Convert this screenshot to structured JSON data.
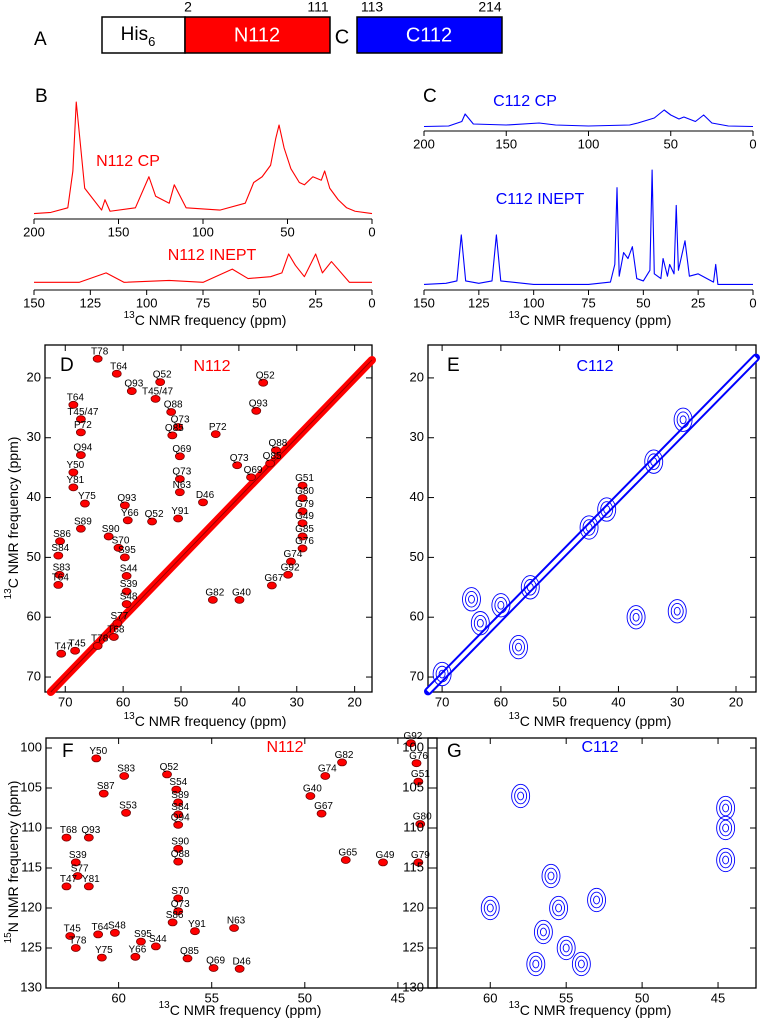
{
  "construct": {
    "letter": "A",
    "tag": "His",
    "tag_sub": "6",
    "linker": "C",
    "domains": [
      {
        "name": "N112",
        "start": 2,
        "end": 111,
        "color": "#ff0000"
      },
      {
        "name": "C112",
        "start": 113,
        "end": 214,
        "color": "#0000ff"
      }
    ]
  },
  "chart_data": [
    {
      "type": "line",
      "letter": "B",
      "title": "N112 CP",
      "color": "#ff0000",
      "x": [
        200,
        190,
        180,
        177,
        175,
        173,
        170,
        160,
        158,
        155,
        140,
        132,
        128,
        120,
        117,
        110,
        90,
        75,
        70,
        65,
        60,
        57,
        55,
        52,
        48,
        43,
        40,
        35,
        30,
        28,
        25,
        20,
        15,
        10,
        0
      ],
      "values": [
        3,
        4,
        8,
        40,
        100,
        70,
        25,
        6,
        15,
        5,
        8,
        35,
        18,
        12,
        28,
        8,
        6,
        12,
        30,
        35,
        45,
        68,
        80,
        60,
        42,
        30,
        28,
        35,
        32,
        40,
        25,
        15,
        8,
        5,
        3
      ],
      "xlim": [
        200,
        0
      ],
      "xticks": [
        200,
        150,
        100,
        50,
        0
      ]
    },
    {
      "type": "line",
      "title": "N112 INEPT",
      "color": "#ff0000",
      "x": [
        150,
        130,
        118,
        110,
        90,
        75,
        62,
        55,
        45,
        40,
        37,
        34,
        30,
        25,
        22,
        18,
        10,
        0
      ],
      "values": [
        3,
        3,
        8,
        3,
        4,
        3,
        10,
        5,
        6,
        8,
        18,
        12,
        6,
        18,
        8,
        14,
        3,
        3
      ],
      "xlim": [
        150,
        0
      ],
      "xticks": [
        150,
        125,
        100,
        75,
        50,
        25,
        0
      ],
      "xlabel_sup": "13",
      "xlabel": "C NMR frequency (ppm)"
    },
    {
      "type": "line",
      "letter": "C",
      "title": "C112 CP",
      "color": "#0000ff",
      "x": [
        200,
        185,
        177,
        175,
        170,
        150,
        130,
        120,
        100,
        75,
        70,
        60,
        57,
        54,
        50,
        45,
        42,
        35,
        30,
        25,
        15,
        0
      ],
      "values": [
        5,
        6,
        15,
        30,
        10,
        8,
        12,
        8,
        6,
        8,
        12,
        22,
        30,
        38,
        28,
        20,
        24,
        15,
        28,
        12,
        6,
        5
      ],
      "xlim": [
        200,
        0
      ],
      "xticks": [
        200,
        150,
        100,
        50,
        0
      ]
    },
    {
      "type": "line",
      "title": "C112 INEPT",
      "color": "#0000ff",
      "x": [
        150,
        140,
        135,
        133,
        131,
        125,
        119,
        117,
        115,
        100,
        75,
        65,
        63,
        62,
        61,
        59,
        57,
        55,
        53,
        50,
        47,
        46,
        45,
        42,
        41,
        39,
        38,
        36,
        35,
        34,
        31,
        29,
        25,
        18,
        17,
        16,
        10,
        0
      ],
      "values": [
        3,
        4,
        6,
        45,
        6,
        4,
        6,
        45,
        6,
        3,
        3,
        5,
        20,
        85,
        10,
        30,
        25,
        35,
        8,
        6,
        15,
        100,
        12,
        8,
        25,
        10,
        20,
        12,
        70,
        15,
        40,
        10,
        12,
        5,
        20,
        3,
        3,
        3
      ],
      "xlim": [
        150,
        0
      ],
      "xticks": [
        150,
        125,
        100,
        75,
        50,
        25,
        0
      ],
      "xlabel_sup": "13",
      "xlabel": "C NMR frequency (ppm)"
    },
    {
      "type": "contour",
      "letter": "D",
      "title": "N112",
      "color": "#ff0000",
      "diagonal": true,
      "labels": true,
      "xlim": [
        73.5,
        17
      ],
      "xticks": [
        70,
        60,
        50,
        40,
        30,
        20
      ],
      "ylim": [
        14.5,
        72.5
      ],
      "yticks": [
        20,
        30,
        40,
        50,
        60,
        70
      ],
      "xlabel_sup": "13",
      "xlabel": "C NMR frequency (ppm)",
      "ylabel_sup": "13",
      "ylabel": "C NMR frequency (ppm)",
      "peaks": [
        {
          "label": "T78",
          "x": 64.4,
          "y": 16.8
        },
        {
          "label": "T64",
          "x": 61.1,
          "y": 19.3
        },
        {
          "label": "T64",
          "x": 68.6,
          "y": 24.5
        },
        {
          "label": "T45/47",
          "x": 67.3,
          "y": 26.9
        },
        {
          "label": "Q93",
          "x": 58.5,
          "y": 22.2
        },
        {
          "label": "Q52",
          "x": 53.6,
          "y": 20.7
        },
        {
          "label": "T45/47",
          "x": 54.4,
          "y": 23.5
        },
        {
          "label": "Q88",
          "x": 51.7,
          "y": 25.7
        },
        {
          "label": "Q73",
          "x": 50.5,
          "y": 28.2
        },
        {
          "label": "P72",
          "x": 67.3,
          "y": 29.1
        },
        {
          "label": "Q85",
          "x": 51.5,
          "y": 29.6
        },
        {
          "label": "P72",
          "x": 44.0,
          "y": 29.4
        },
        {
          "label": "Q94",
          "x": 67.3,
          "y": 32.9
        },
        {
          "label": "Q69",
          "x": 50.2,
          "y": 33.1
        },
        {
          "label": "Q52",
          "x": 35.8,
          "y": 20.8
        },
        {
          "label": "Q93",
          "x": 37.0,
          "y": 25.5
        },
        {
          "label": "Q88",
          "x": 33.6,
          "y": 32.1
        },
        {
          "label": "Q85",
          "x": 34.6,
          "y": 34.3
        },
        {
          "label": "Q73",
          "x": 40.3,
          "y": 34.6
        },
        {
          "label": "Q69",
          "x": 37.9,
          "y": 36.6
        },
        {
          "label": "Y50",
          "x": 68.6,
          "y": 35.8
        },
        {
          "label": "Y81",
          "x": 68.6,
          "y": 38.3
        },
        {
          "label": "Y75",
          "x": 66.6,
          "y": 41.0
        },
        {
          "label": "Q73",
          "x": 50.2,
          "y": 36.9
        },
        {
          "label": "N63",
          "x": 50.2,
          "y": 39.1
        },
        {
          "label": "Q93",
          "x": 59.7,
          "y": 41.3
        },
        {
          "label": "Y66",
          "x": 59.2,
          "y": 43.8
        },
        {
          "label": "Q52",
          "x": 55.0,
          "y": 44.0
        },
        {
          "label": "Y91",
          "x": 50.5,
          "y": 43.5
        },
        {
          "label": "D46",
          "x": 46.2,
          "y": 40.8
        },
        {
          "label": "G51",
          "x": 29.0,
          "y": 38.0
        },
        {
          "label": "G80",
          "x": 29.0,
          "y": 40.1
        },
        {
          "label": "G79",
          "x": 29.0,
          "y": 42.3
        },
        {
          "label": "G49",
          "x": 29.0,
          "y": 44.3
        },
        {
          "label": "G85",
          "x": 29.0,
          "y": 46.5
        },
        {
          "label": "G76",
          "x": 29.0,
          "y": 48.5
        },
        {
          "label": "G74",
          "x": 31.0,
          "y": 50.7
        },
        {
          "label": "G92",
          "x": 31.5,
          "y": 52.9
        },
        {
          "label": "G67",
          "x": 34.3,
          "y": 54.7
        },
        {
          "label": "G40",
          "x": 39.9,
          "y": 57.1
        },
        {
          "label": "G82",
          "x": 44.5,
          "y": 57.1
        },
        {
          "label": "S89",
          "x": 67.3,
          "y": 45.2
        },
        {
          "label": "S90",
          "x": 62.5,
          "y": 46.5
        },
        {
          "label": "S86",
          "x": 70.9,
          "y": 47.3
        },
        {
          "label": "S84",
          "x": 71.2,
          "y": 49.7
        },
        {
          "label": "S70",
          "x": 60.8,
          "y": 48.4
        },
        {
          "label": "S95",
          "x": 59.7,
          "y": 50.0
        },
        {
          "label": "S83",
          "x": 71.0,
          "y": 52.9
        },
        {
          "label": "S44",
          "x": 59.4,
          "y": 53.1
        },
        {
          "label": "S39",
          "x": 59.4,
          "y": 55.7
        },
        {
          "label": "T64",
          "x": 71.2,
          "y": 54.6
        },
        {
          "label": "S48",
          "x": 59.4,
          "y": 57.8
        },
        {
          "label": "S77",
          "x": 61.0,
          "y": 61.0
        },
        {
          "label": "T68",
          "x": 61.6,
          "y": 63.3
        },
        {
          "label": "T78",
          "x": 64.4,
          "y": 64.8
        },
        {
          "label": "T45",
          "x": 68.3,
          "y": 65.6
        },
        {
          "label": "T47",
          "x": 70.7,
          "y": 66.1
        }
      ]
    },
    {
      "type": "contour",
      "letter": "E",
      "title": "C112",
      "color": "#0000ff",
      "diagonal": true,
      "labels": false,
      "xlim": [
        72.4,
        16.6
      ],
      "xticks": [
        70,
        60,
        50,
        40,
        30,
        20
      ],
      "ylim": [
        14.5,
        72.5
      ],
      "yticks": [
        20,
        30,
        40,
        50,
        60,
        70
      ],
      "xlabel_sup": "13",
      "xlabel": "C NMR frequency (ppm)",
      "peaks": [
        {
          "x": 65,
          "y": 57
        },
        {
          "x": 63.5,
          "y": 61
        },
        {
          "x": 57,
          "y": 65
        },
        {
          "x": 55,
          "y": 55
        },
        {
          "x": 45,
          "y": 45
        },
        {
          "x": 37,
          "y": 60
        },
        {
          "x": 30,
          "y": 59
        },
        {
          "x": 60,
          "y": 58
        },
        {
          "x": 42,
          "y": 42
        },
        {
          "x": 34,
          "y": 34
        },
        {
          "x": 29,
          "y": 27
        },
        {
          "x": 70,
          "y": 69.5
        }
      ]
    },
    {
      "type": "contour",
      "letter": "F",
      "title": "N112",
      "color": "#ff0000",
      "diagonal": false,
      "labels": true,
      "xlim": [
        63.9,
        42.9
      ],
      "xticks": [
        60,
        55,
        50,
        45
      ],
      "ylim": [
        98.75,
        130
      ],
      "yticks": [
        100,
        105,
        110,
        115,
        120,
        125,
        130
      ],
      "xlabel_sup": "13",
      "xlabel": "C NMR frequency (ppm)",
      "ylabel_sup": "15",
      "ylabel": "N NMR frequency (ppm)",
      "peaks": [
        {
          "label": "Y50",
          "x": 61.2,
          "y": 101.3
        },
        {
          "label": "Q52",
          "x": 57.4,
          "y": 103.3
        },
        {
          "label": "S83",
          "x": 59.7,
          "y": 103.5
        },
        {
          "label": "S87",
          "x": 60.8,
          "y": 105.7
        },
        {
          "label": "S54",
          "x": 56.9,
          "y": 105.2
        },
        {
          "label": "T68",
          "x": 62.8,
          "y": 111.2
        },
        {
          "label": "Q93",
          "x": 61.6,
          "y": 111.2
        },
        {
          "label": "S53",
          "x": 59.6,
          "y": 108.1
        },
        {
          "label": "S89",
          "x": 56.8,
          "y": 106.8
        },
        {
          "label": "S84",
          "x": 56.8,
          "y": 108.3
        },
        {
          "label": "Q94",
          "x": 56.8,
          "y": 109.6
        },
        {
          "label": "S39",
          "x": 62.3,
          "y": 114.3
        },
        {
          "label": "S77",
          "x": 62.2,
          "y": 116.0
        },
        {
          "label": "S90",
          "x": 56.8,
          "y": 112.6
        },
        {
          "label": "Q88",
          "x": 56.8,
          "y": 114.2
        },
        {
          "label": "T47",
          "x": 62.8,
          "y": 117.3
        },
        {
          "label": "Y81",
          "x": 61.6,
          "y": 117.3
        },
        {
          "label": "S70",
          "x": 56.8,
          "y": 118.8
        },
        {
          "label": "Q73",
          "x": 56.8,
          "y": 120.4
        },
        {
          "label": "S86",
          "x": 57.1,
          "y": 121.8
        },
        {
          "label": "T45",
          "x": 62.6,
          "y": 123.5
        },
        {
          "label": "T78",
          "x": 62.3,
          "y": 125.0
        },
        {
          "label": "T64",
          "x": 61.1,
          "y": 123.3
        },
        {
          "label": "S48",
          "x": 60.2,
          "y": 123.1
        },
        {
          "label": "S44",
          "x": 58.0,
          "y": 124.8
        },
        {
          "label": "S95",
          "x": 58.8,
          "y": 124.2
        },
        {
          "label": "Y75",
          "x": 60.9,
          "y": 126.2
        },
        {
          "label": "Y66",
          "x": 59.1,
          "y": 126.1
        },
        {
          "label": "Y91",
          "x": 55.9,
          "y": 122.9
        },
        {
          "label": "Q85",
          "x": 56.3,
          "y": 126.3
        },
        {
          "label": "Q69",
          "x": 54.9,
          "y": 127.5
        },
        {
          "label": "N63",
          "x": 53.8,
          "y": 122.5
        },
        {
          "label": "D46",
          "x": 53.5,
          "y": 127.6
        },
        {
          "label": "G92",
          "x": 44.3,
          "y": 99.4
        },
        {
          "label": "G76",
          "x": 44.0,
          "y": 101.9
        },
        {
          "label": "G51",
          "x": 43.9,
          "y": 104.2
        },
        {
          "label": "G82",
          "x": 48.0,
          "y": 101.8
        },
        {
          "label": "G74",
          "x": 48.9,
          "y": 103.5
        },
        {
          "label": "G40",
          "x": 49.7,
          "y": 106.0
        },
        {
          "label": "G67",
          "x": 49.1,
          "y": 108.2
        },
        {
          "label": "G80",
          "x": 43.8,
          "y": 109.5
        },
        {
          "label": "G65",
          "x": 47.8,
          "y": 114.0
        },
        {
          "label": "G49",
          "x": 45.8,
          "y": 114.3
        },
        {
          "label": "G79",
          "x": 43.9,
          "y": 114.3
        }
      ]
    },
    {
      "type": "contour",
      "letter": "G",
      "title": "C112",
      "color": "#0000ff",
      "diagonal": false,
      "labels": false,
      "xlim": [
        64.1,
        42.5
      ],
      "xticks": [
        60,
        55,
        50,
        45
      ],
      "ylim": [
        98.75,
        130
      ],
      "yticks": [
        100,
        105,
        110,
        115,
        120,
        125,
        130
      ],
      "xlabel_sup": "13",
      "xlabel": "C NMR frequency (ppm)",
      "peaks": [
        {
          "x": 56,
          "y": 116
        },
        {
          "x": 55.5,
          "y": 120
        },
        {
          "x": 56.5,
          "y": 123
        },
        {
          "x": 55,
          "y": 125
        },
        {
          "x": 54,
          "y": 127
        },
        {
          "x": 57,
          "y": 127
        },
        {
          "x": 58,
          "y": 106
        },
        {
          "x": 44.5,
          "y": 107.5
        },
        {
          "x": 44.5,
          "y": 110
        },
        {
          "x": 44.5,
          "y": 114
        },
        {
          "x": 60,
          "y": 120
        },
        {
          "x": 53,
          "y": 119
        }
      ]
    }
  ]
}
